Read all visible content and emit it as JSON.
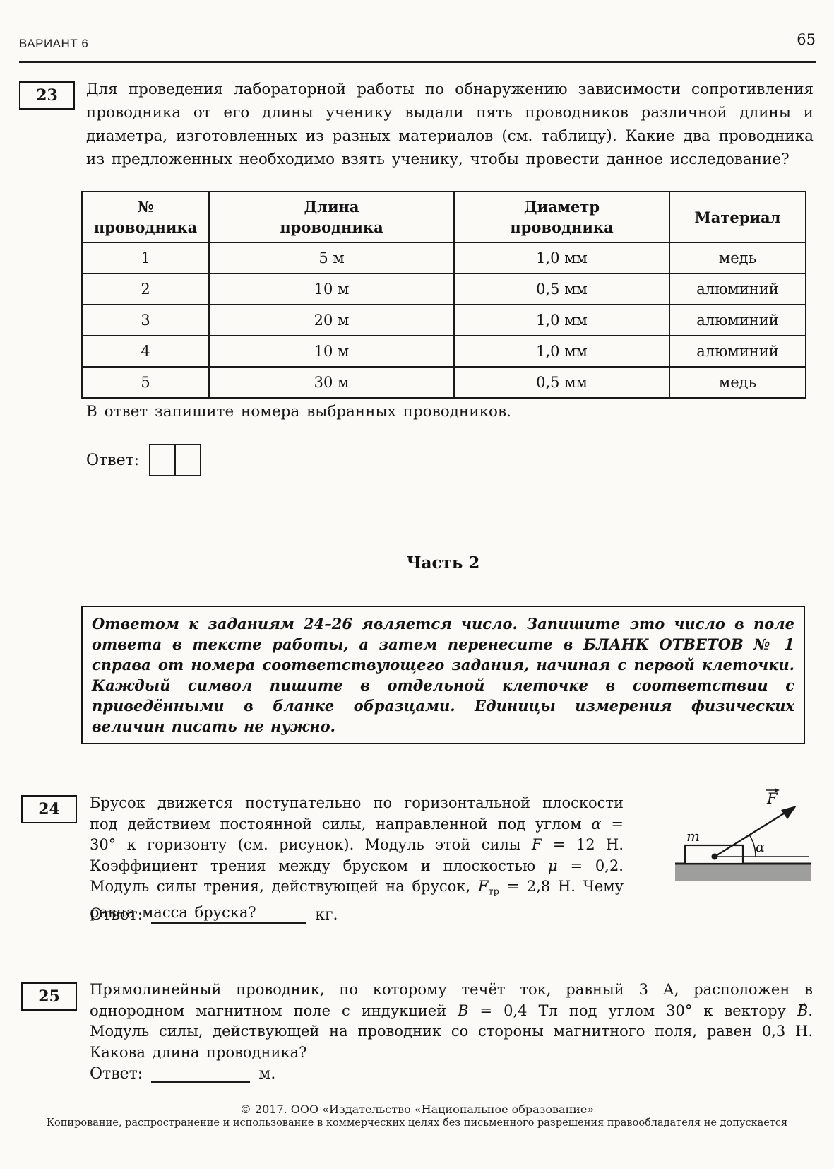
{
  "header": {
    "variant": "ВАРИАНТ 6",
    "page_number": "65"
  },
  "q23": {
    "number": "23",
    "text": "Для проведения лабораторной работы по обнаружению зависимости сопротивления проводника от его длины ученику выдали пять проводников различной длины и диаметра, изготовленных из разных материалов (см. таблицу). Какие два проводника из предложенных необходимо взять ученику, чтобы провести данное исследование?",
    "table": {
      "headers": [
        "№\nпроводника",
        "Длина\nпроводника",
        "Диаметр\nпроводника",
        "Материал"
      ],
      "rows": [
        [
          "1",
          "5 м",
          "1,0 мм",
          "медь"
        ],
        [
          "2",
          "10 м",
          "0,5 мм",
          "алюминий"
        ],
        [
          "3",
          "20 м",
          "1,0 мм",
          "алюминий"
        ],
        [
          "4",
          "10 м",
          "1,0 мм",
          "алюминий"
        ],
        [
          "5",
          "30 м",
          "0,5 мм",
          "медь"
        ]
      ]
    },
    "note": "В ответ запишите номера выбранных проводников.",
    "answer_label": "Ответ:"
  },
  "part2": {
    "title": "Часть 2",
    "instructions": "Ответом к заданиям 24–26 является число. Запишите это число в поле ответа в тексте работы, а затем перенесите в БЛАНК ОТВЕТОВ № 1 справа от номера соответствующего задания, начиная с первой клеточки. Каждый символ пишите в отдельной клеточке в соответствии с приведёнными в бланке образцами. Единицы измерения физических величин писать не нужно."
  },
  "q24": {
    "number": "24",
    "p1": "Брусок движется поступательно по горизонтальной плоскости под действием постоянной силы, направленной под углом ",
    "sym_alpha": "α",
    "p2": " = 30° к горизонту (см. рисунок). Модуль этой силы ",
    "sym_F": "F",
    "p3": " = 12 Н. Коэффициент трения между бруском и плоскостью ",
    "sym_mu": "μ",
    "p4": " = 0,2. Модуль силы трения, действующей на брусок, ",
    "sym_Ftr": "F",
    "sym_Ftr_sub": "тр",
    "p5": " = 2,8 Н. Чему равна масса бруска?",
    "figure": {
      "mass_label": "m",
      "force_label": "F",
      "angle_label": "α"
    },
    "answer_label": "Ответ:",
    "answer_unit": "кг."
  },
  "q25": {
    "number": "25",
    "p1": "Прямолинейный проводник, по которому течёт ток, равный 3 А, расположен в однородном магнитном поле с индукцией ",
    "sym_B": "B",
    "p2": " = 0,4 Тл под углом 30° к вектору ",
    "sym_Bvec": "B",
    "p3": ". Модуль силы, действующей на проводник со стороны магнитного поля, равен 0,3 Н. Какова длина проводника?",
    "answer_label": "Ответ:",
    "answer_unit": "м."
  },
  "footer": {
    "copyright": "© 2017. ООО «Издательство «Национальное образование»",
    "notice": "Копирование, распространение и использование в коммерческих целях без письменного разрешения правообладателя не допускается"
  }
}
